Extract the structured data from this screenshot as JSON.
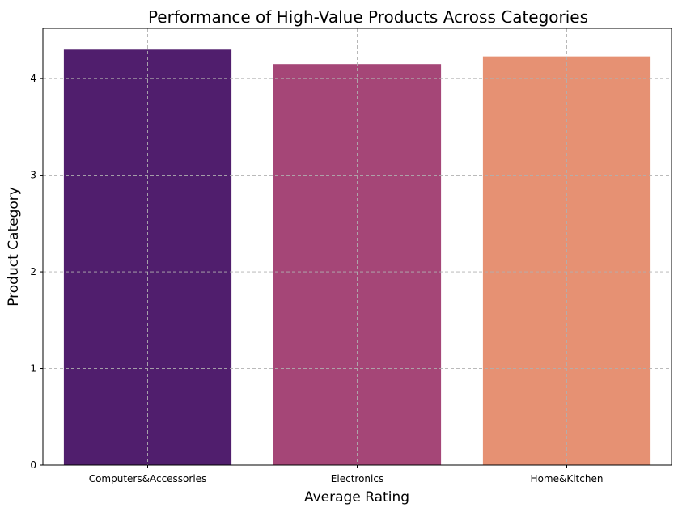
{
  "chart_data": {
    "type": "bar",
    "title": "Performance of High-Value Products Across Categories",
    "xlabel": "Average Rating",
    "ylabel": "Product Category",
    "categories": [
      "Computers&Accessories",
      "Electronics",
      "Home&Kitchen"
    ],
    "values": [
      4.3,
      4.15,
      4.23
    ],
    "colors": [
      "#501e6d",
      "#a54677",
      "#e69173"
    ],
    "ylim": [
      0,
      4.52
    ],
    "yticks": [
      0,
      1,
      2,
      3,
      4
    ],
    "grid": true
  }
}
